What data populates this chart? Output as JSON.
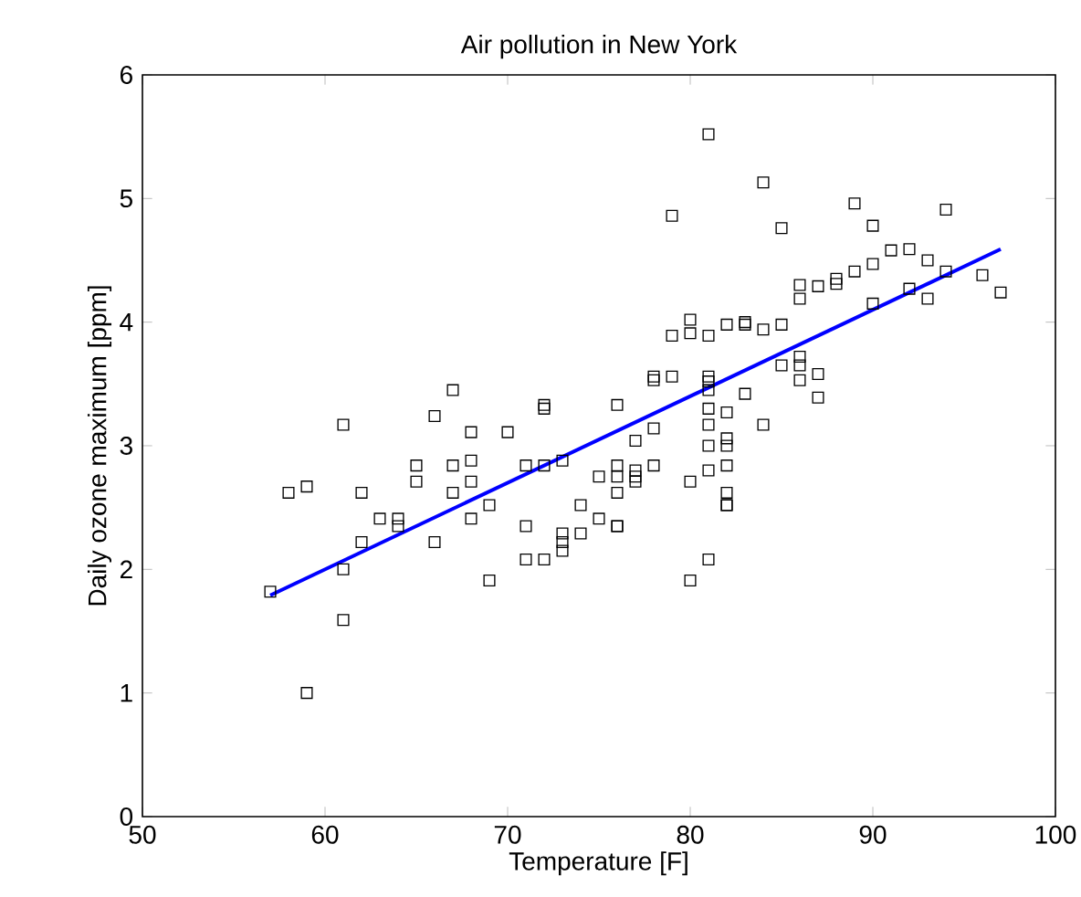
{
  "chart_data": {
    "type": "scatter",
    "title": "Air pollution in New York",
    "xlabel": "Temperature [F]",
    "ylabel": "Daily ozone maximum [ppm]",
    "xlim": [
      50,
      100
    ],
    "ylim": [
      0,
      6
    ],
    "xticks": [
      50,
      60,
      70,
      80,
      90,
      100
    ],
    "yticks": [
      0,
      1,
      2,
      3,
      4,
      5,
      6
    ],
    "grid": false,
    "marker": "square",
    "series": [
      {
        "color": "#000000",
        "x": [
          57,
          58,
          59,
          59,
          61,
          61,
          61,
          62,
          62,
          63,
          64,
          64,
          65,
          65,
          66,
          66,
          67,
          67,
          67,
          68,
          68,
          68,
          68,
          69,
          69,
          70,
          71,
          71,
          71,
          72,
          72,
          72,
          72,
          73,
          73,
          73,
          73,
          74,
          74,
          75,
          75,
          76,
          76,
          76,
          76,
          76,
          76,
          77,
          77,
          77,
          77,
          78,
          78,
          78,
          78,
          79,
          79,
          79,
          80,
          80,
          80,
          80,
          81,
          81,
          81,
          81,
          81,
          81,
          81,
          81,
          81,
          81,
          82,
          82,
          82,
          82,
          82,
          82,
          82,
          82,
          83,
          83,
          83,
          84,
          84,
          84,
          85,
          85,
          85,
          86,
          86,
          86,
          86,
          86,
          87,
          87,
          87,
          88,
          88,
          89,
          89,
          90,
          90,
          90,
          91,
          92,
          92,
          93,
          93,
          94,
          94,
          96,
          97
        ],
        "values": [
          1.82,
          2.62,
          2.67,
          1.0,
          3.17,
          2.0,
          1.59,
          2.62,
          2.22,
          2.41,
          2.41,
          2.35,
          2.84,
          2.71,
          3.24,
          2.22,
          3.45,
          2.84,
          2.62,
          3.11,
          2.88,
          2.71,
          2.41,
          2.52,
          1.91,
          3.11,
          2.84,
          2.35,
          2.08,
          3.33,
          3.3,
          2.84,
          2.08,
          2.88,
          2.29,
          2.22,
          2.15,
          2.52,
          2.29,
          2.75,
          2.41,
          3.33,
          2.84,
          2.75,
          2.62,
          2.35,
          2.35,
          3.04,
          2.8,
          2.75,
          2.71,
          3.56,
          3.53,
          3.14,
          2.84,
          4.86,
          3.89,
          3.56,
          4.02,
          3.91,
          2.71,
          1.91,
          5.52,
          3.89,
          3.56,
          3.52,
          3.45,
          3.3,
          3.17,
          3.0,
          2.8,
          2.08,
          3.98,
          3.27,
          3.06,
          3.0,
          2.84,
          2.62,
          2.52,
          2.52,
          4.0,
          3.98,
          3.42,
          5.13,
          3.94,
          3.17,
          4.76,
          3.98,
          3.65,
          4.3,
          4.19,
          3.72,
          3.65,
          3.53,
          4.29,
          3.58,
          3.39,
          4.35,
          4.31,
          4.96,
          4.41,
          4.78,
          4.47,
          4.15,
          4.58,
          4.59,
          4.27,
          4.5,
          4.19,
          4.91,
          4.41,
          4.38,
          4.24
        ]
      },
      {
        "type": "line",
        "marker": "none",
        "color": "#0000ff",
        "x": [
          57,
          97
        ],
        "values": [
          1.79,
          4.59
        ]
      }
    ]
  }
}
